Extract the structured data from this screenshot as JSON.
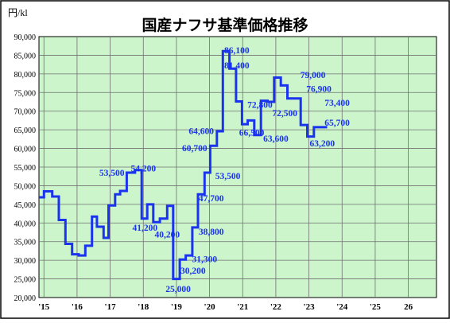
{
  "chart_data": {
    "type": "line",
    "title": "国産ナフサ基準価格推移",
    "ylabel": "円/kl",
    "xlabel": "",
    "ylim": [
      20000,
      90000
    ],
    "y_ticks": [
      "20,000",
      "25,000",
      "30,000",
      "35,000",
      "40,000",
      "45,000",
      "50,000",
      "55,000",
      "60,000",
      "65,000",
      "70,000",
      "75,000",
      "80,000",
      "85,000",
      "90,000"
    ],
    "x_ticks": [
      {
        "label": "'15",
        "x": 2015.0
      },
      {
        "label": "'16",
        "x": 2016.0
      },
      {
        "label": "'17",
        "x": 2017.0
      },
      {
        "label": "'18",
        "x": 2018.0
      },
      {
        "label": "'19",
        "x": 2019.0
      },
      {
        "label": "'20",
        "x": 2020.0
      },
      {
        "label": "'21",
        "x": 2021.0
      },
      {
        "label": "'22",
        "x": 2022.0
      },
      {
        "label": "'23",
        "x": 2023.0
      },
      {
        "label": "'24",
        "x": 2024.0
      },
      {
        "label": "'25",
        "x": 2025.0
      },
      {
        "label": "26",
        "x": 2026.0
      }
    ],
    "xlim": [
      2014.85,
      2026.85
    ],
    "grid": true,
    "line_color": "#1a33ee",
    "plot_background": "#ccf5cc",
    "series": [
      {
        "points": [
          [
            2014.85,
            46900
          ],
          [
            2015.0,
            46900
          ],
          [
            2015.0,
            48500
          ],
          [
            2015.25,
            48500
          ],
          [
            2015.25,
            47100
          ],
          [
            2015.45,
            47100
          ],
          [
            2015.45,
            40800
          ],
          [
            2015.65,
            40800
          ],
          [
            2015.65,
            34400
          ],
          [
            2015.85,
            34400
          ],
          [
            2015.85,
            31600
          ],
          [
            2016.05,
            31600
          ],
          [
            2016.05,
            31300
          ],
          [
            2016.25,
            31300
          ],
          [
            2016.25,
            33900
          ],
          [
            2016.45,
            33900
          ],
          [
            2016.45,
            41700
          ],
          [
            2016.6,
            41700
          ],
          [
            2016.6,
            39000
          ],
          [
            2016.8,
            39000
          ],
          [
            2016.8,
            36000
          ],
          [
            2016.95,
            36000
          ],
          [
            2016.95,
            44700
          ],
          [
            2017.15,
            44700
          ],
          [
            2017.15,
            47700
          ],
          [
            2017.3,
            47700
          ],
          [
            2017.3,
            48600
          ],
          [
            2017.5,
            48600
          ],
          [
            2017.5,
            53500
          ],
          [
            2017.75,
            53500
          ],
          [
            2017.75,
            54200
          ],
          [
            2017.95,
            54200
          ],
          [
            2017.95,
            41200
          ],
          [
            2018.12,
            41200
          ],
          [
            2018.12,
            45000
          ],
          [
            2018.3,
            45000
          ],
          [
            2018.3,
            40200
          ],
          [
            2018.5,
            40200
          ],
          [
            2018.5,
            41200
          ],
          [
            2018.72,
            41200
          ],
          [
            2018.72,
            44600
          ],
          [
            2018.9,
            44600
          ],
          [
            2018.9,
            25000
          ],
          [
            2019.1,
            25000
          ],
          [
            2019.1,
            30200
          ],
          [
            2019.28,
            30200
          ],
          [
            2019.28,
            31300
          ],
          [
            2019.48,
            31300
          ],
          [
            2019.48,
            38800
          ],
          [
            2019.65,
            38800
          ],
          [
            2019.65,
            47700
          ],
          [
            2019.85,
            47700
          ],
          [
            2019.85,
            53500
          ],
          [
            2020.02,
            53500
          ],
          [
            2020.02,
            60700
          ],
          [
            2020.22,
            60700
          ],
          [
            2020.22,
            64600
          ],
          [
            2020.4,
            64600
          ],
          [
            2020.4,
            86100
          ],
          [
            2020.6,
            86100
          ],
          [
            2020.6,
            81400
          ],
          [
            2020.8,
            81400
          ],
          [
            2020.8,
            72600
          ],
          [
            2020.98,
            72600
          ],
          [
            2020.98,
            66500
          ],
          [
            2021.15,
            66500
          ],
          [
            2021.15,
            67500
          ],
          [
            2021.35,
            67500
          ],
          [
            2021.35,
            63600
          ],
          [
            2021.55,
            63600
          ],
          [
            2021.55,
            72800
          ],
          [
            2021.75,
            72800
          ],
          [
            2021.75,
            72500
          ],
          [
            2021.95,
            72500
          ],
          [
            2021.95,
            79000
          ],
          [
            2022.15,
            79000
          ],
          [
            2022.15,
            76900
          ],
          [
            2022.35,
            76900
          ],
          [
            2022.35,
            73400
          ],
          [
            2022.75,
            73400
          ],
          [
            2022.75,
            66300
          ],
          [
            2022.95,
            66300
          ],
          [
            2022.95,
            63200
          ],
          [
            2023.15,
            63200
          ],
          [
            2023.15,
            65700
          ],
          [
            2023.55,
            65700
          ]
        ]
      }
    ],
    "data_labels": [
      {
        "text": "53,500",
        "x": 2017.05,
        "y": 53500
      },
      {
        "text": "54,200",
        "x": 2018.0,
        "y": 54700
      },
      {
        "text": "41,200",
        "x": 2018.05,
        "y": 38800
      },
      {
        "text": "40,200",
        "x": 2018.72,
        "y": 37000
      },
      {
        "text": "25,000",
        "x": 2019.05,
        "y": 22400
      },
      {
        "text": "30,200",
        "x": 2019.5,
        "y": 27300
      },
      {
        "text": "31,300",
        "x": 2019.85,
        "y": 30400
      },
      {
        "text": "38,800",
        "x": 2020.05,
        "y": 37700
      },
      {
        "text": "47,700",
        "x": 2020.05,
        "y": 46700
      },
      {
        "text": "53,500",
        "x": 2020.55,
        "y": 52700
      },
      {
        "text": "60,700",
        "x": 2019.55,
        "y": 60100
      },
      {
        "text": "64,600",
        "x": 2019.75,
        "y": 64700
      },
      {
        "text": "86,100",
        "x": 2020.82,
        "y": 86400
      },
      {
        "text": "81,400",
        "x": 2020.82,
        "y": 82300
      },
      {
        "text": "72,800",
        "x": 2021.52,
        "y": 71800
      },
      {
        "text": "66,500",
        "x": 2021.27,
        "y": 64300
      },
      {
        "text": "72,500",
        "x": 2022.27,
        "y": 69500
      },
      {
        "text": "63,600",
        "x": 2022.0,
        "y": 62700
      },
      {
        "text": "79,000",
        "x": 2023.12,
        "y": 79800
      },
      {
        "text": "76,900",
        "x": 2023.3,
        "y": 76000
      },
      {
        "text": "73,400",
        "x": 2023.85,
        "y": 72300
      },
      {
        "text": "65,700",
        "x": 2023.85,
        "y": 67000
      },
      {
        "text": "63,200",
        "x": 2023.4,
        "y": 61400
      }
    ]
  }
}
